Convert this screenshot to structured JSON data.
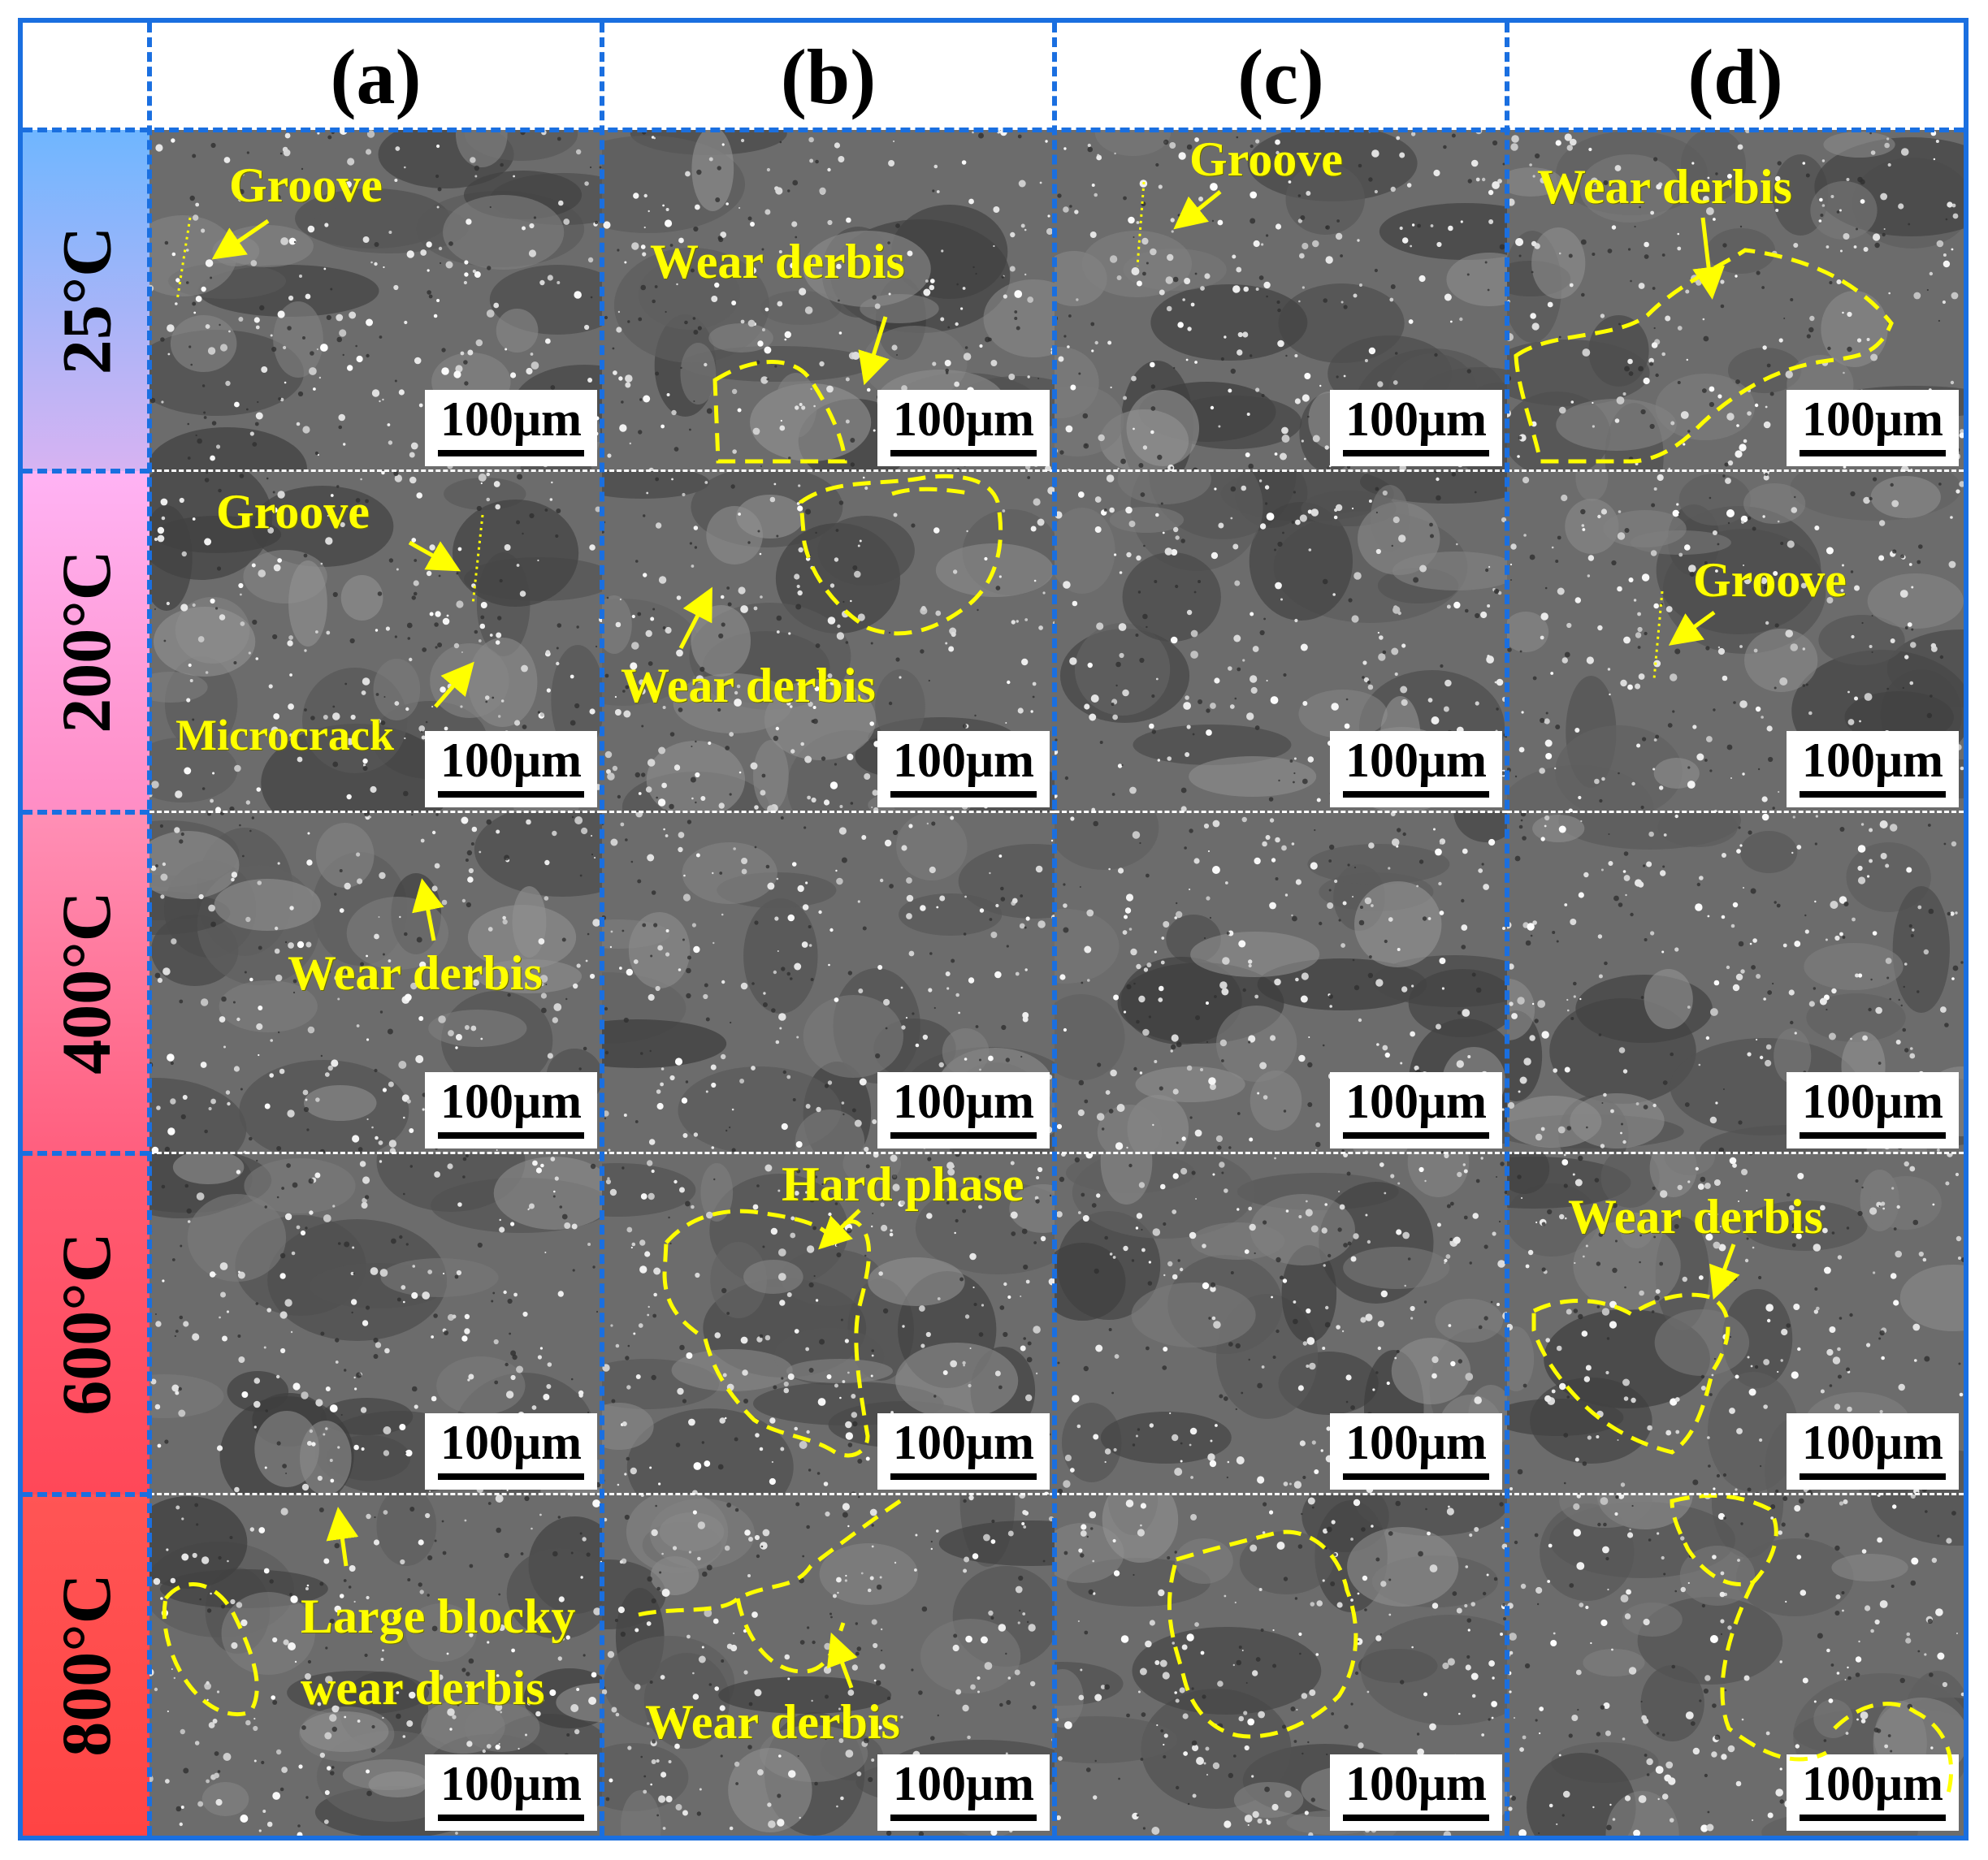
{
  "columns": [
    "(a)",
    "(b)",
    "(c)",
    "(d)"
  ],
  "rows": [
    {
      "label": "25°C",
      "color_top": "#6fb6ff",
      "color_bottom": "#d7b3f2"
    },
    {
      "label": "200°C",
      "color_top": "#ffb3f4",
      "color_bottom": "#ff8dc4"
    },
    {
      "label": "400°C",
      "color_top": "#ff8fb6",
      "color_bottom": "#ff5f7e"
    },
    {
      "label": "600°C",
      "color_top": "#ff5c74",
      "color_bottom": "#ff4858"
    },
    {
      "label": "800°C",
      "color_top": "#ff5555",
      "color_bottom": "#ff4444"
    }
  ],
  "scale_bar": "100μm",
  "annotations": {
    "r0c0": [
      "Groove"
    ],
    "r0c1": [
      "Wear derbis"
    ],
    "r0c2": [
      "Groove"
    ],
    "r0c3": [
      "Wear derbis"
    ],
    "r1c0": [
      "Groove",
      "Microcrack"
    ],
    "r1c1": [
      "Wear derbis"
    ],
    "r1c3": [
      "Groove"
    ],
    "r2c0": [
      "Wear derbis"
    ],
    "r3c1": [
      "Hard phase"
    ],
    "r3c3": [
      "Wear derbis"
    ],
    "r4c0": [
      "Large blocky",
      "wear derbis"
    ],
    "r4c1": [
      "Wear derbis"
    ]
  },
  "colors": {
    "border": "#1a6fe0",
    "annotation": "#ffff00"
  }
}
